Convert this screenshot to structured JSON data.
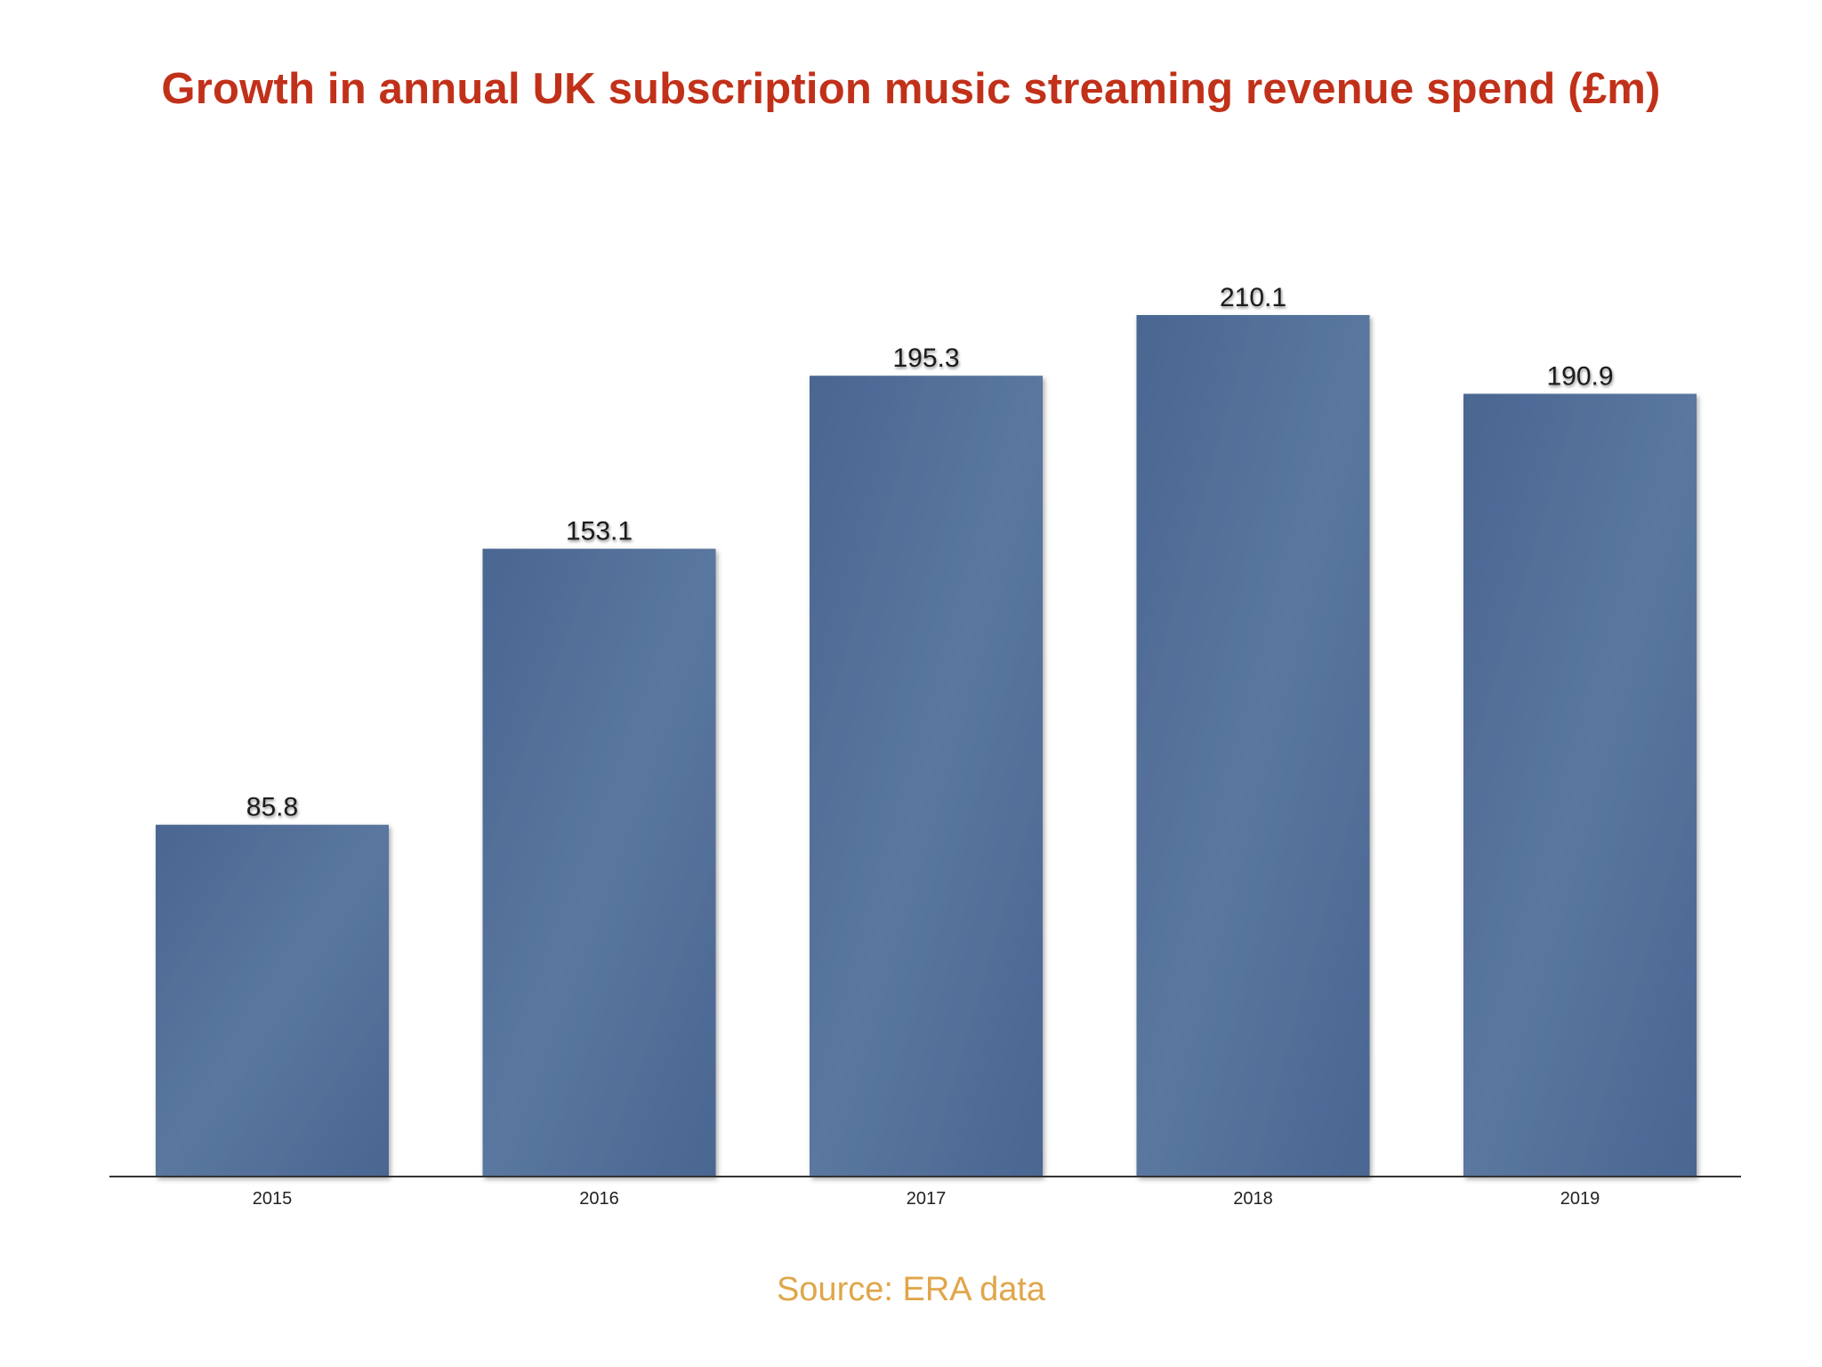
{
  "chart_data": {
    "type": "bar",
    "title": "Growth in annual UK subscription music streaming revenue spend (£m)",
    "categories": [
      "2015",
      "2016",
      "2017",
      "2018",
      "2019"
    ],
    "values": [
      85.8,
      153.1,
      195.3,
      210.1,
      190.9
    ],
    "data_labels": [
      "85.8",
      "153.1",
      "195.3",
      "210.1",
      "190.9"
    ],
    "xlabel": "",
    "ylabel": "",
    "ylim": [
      0,
      210.1
    ],
    "grid": false,
    "legend": "none",
    "source": "Source: ERA data"
  },
  "colors": {
    "title": "#c1311a",
    "bar": "#4a6692",
    "bar_highlight": "#5a779f",
    "axis": "#333333",
    "source": "#e0a64a"
  }
}
